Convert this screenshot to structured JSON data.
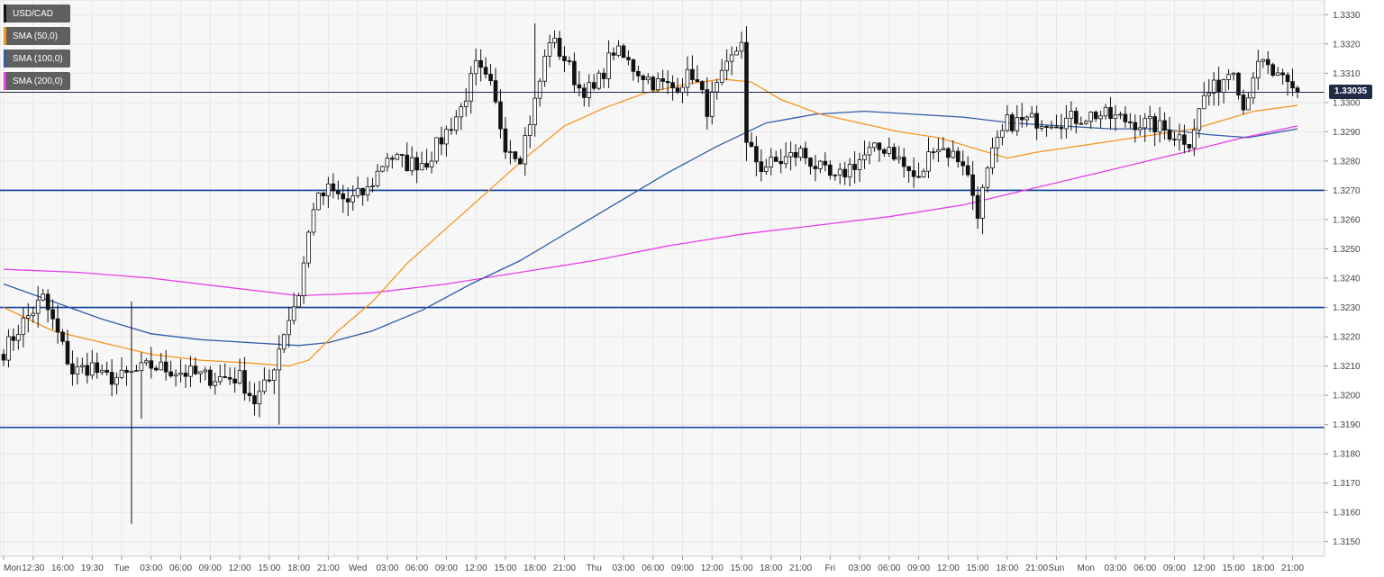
{
  "chart_data": {
    "type": "candlestick",
    "symbol": "USD/CAD",
    "legend": [
      {
        "label": "USD/CAD",
        "color": "#111111"
      },
      {
        "label": "SMA (50,0)",
        "color": "#f7941d"
      },
      {
        "label": "SMA (100,0)",
        "color": "#2e5aa8"
      },
      {
        "label": "SMA (200,0)",
        "color": "#e83ee8"
      }
    ],
    "y_axis": {
      "min": 1.3145,
      "max": 1.3335,
      "ticks": [
        "1.3150",
        "1.3160",
        "1.3170",
        "1.3180",
        "1.3190",
        "1.3200",
        "1.3210",
        "1.3220",
        "1.3230",
        "1.3240",
        "1.3250",
        "1.3260",
        "1.3270",
        "1.3280",
        "1.3290",
        "1.3300",
        "1.3310",
        "1.3320",
        "1.3330"
      ]
    },
    "x_axis": {
      "ticks": [
        {
          "i": 0,
          "label": "Mon"
        },
        {
          "i": 6,
          "label": "12:30"
        },
        {
          "i": 12,
          "label": "16:00"
        },
        {
          "i": 18,
          "label": "19:30"
        },
        {
          "i": 24,
          "label": "Tue"
        },
        {
          "i": 30,
          "label": "03:00"
        },
        {
          "i": 36,
          "label": "06:00"
        },
        {
          "i": 42,
          "label": "09:00"
        },
        {
          "i": 48,
          "label": "12:00"
        },
        {
          "i": 54,
          "label": "15:00"
        },
        {
          "i": 60,
          "label": "18:00"
        },
        {
          "i": 66,
          "label": "21:00"
        },
        {
          "i": 72,
          "label": "Wed"
        },
        {
          "i": 78,
          "label": "03:00"
        },
        {
          "i": 84,
          "label": "06:00"
        },
        {
          "i": 90,
          "label": "09:00"
        },
        {
          "i": 96,
          "label": "12:00"
        },
        {
          "i": 102,
          "label": "15:00"
        },
        {
          "i": 108,
          "label": "18:00"
        },
        {
          "i": 114,
          "label": "21:00"
        },
        {
          "i": 120,
          "label": "Thu"
        },
        {
          "i": 126,
          "label": "03:00"
        },
        {
          "i": 132,
          "label": "06:00"
        },
        {
          "i": 138,
          "label": "09:00"
        },
        {
          "i": 144,
          "label": "12:00"
        },
        {
          "i": 150,
          "label": "15:00"
        },
        {
          "i": 156,
          "label": "18:00"
        },
        {
          "i": 162,
          "label": "21:00"
        },
        {
          "i": 168,
          "label": "Fri"
        },
        {
          "i": 174,
          "label": "03:00"
        },
        {
          "i": 180,
          "label": "06:00"
        },
        {
          "i": 186,
          "label": "09:00"
        },
        {
          "i": 192,
          "label": "12:00"
        },
        {
          "i": 198,
          "label": "15:00"
        },
        {
          "i": 204,
          "label": "18:00"
        },
        {
          "i": 210,
          "label": "21:00"
        },
        {
          "i": 214,
          "label": "Sun"
        },
        {
          "i": 220,
          "label": "Mon"
        },
        {
          "i": 226,
          "label": "03:00"
        },
        {
          "i": 232,
          "label": "06:00"
        },
        {
          "i": 238,
          "label": "09:00"
        },
        {
          "i": 244,
          "label": "12:00"
        },
        {
          "i": 250,
          "label": "15:00"
        },
        {
          "i": 256,
          "label": "18:00"
        },
        {
          "i": 262,
          "label": "21:00"
        }
      ]
    },
    "horizontal_levels": [
      1.327,
      1.323,
      1.3189
    ],
    "current_price": {
      "value": 1.33035,
      "label": "1.33035"
    },
    "candle_count": 264,
    "keypoints": [
      [
        0,
        1.3215
      ],
      [
        4,
        1.3225
      ],
      [
        8,
        1.3233
      ],
      [
        10,
        1.3225
      ],
      [
        14,
        1.3208
      ],
      [
        18,
        1.321
      ],
      [
        20,
        1.3206
      ],
      [
        24,
        1.3206
      ],
      [
        30,
        1.321
      ],
      [
        36,
        1.3208
      ],
      [
        42,
        1.3206
      ],
      [
        48,
        1.3206
      ],
      [
        51,
        1.3198
      ],
      [
        54,
        1.3205
      ],
      [
        57,
        1.3222
      ],
      [
        60,
        1.3235
      ],
      [
        63,
        1.3265
      ],
      [
        66,
        1.327
      ],
      [
        70,
        1.3266
      ],
      [
        74,
        1.327
      ],
      [
        78,
        1.3282
      ],
      [
        82,
        1.3279
      ],
      [
        86,
        1.328
      ],
      [
        90,
        1.329
      ],
      [
        93,
        1.3298
      ],
      [
        96,
        1.3312
      ],
      [
        99,
        1.3305
      ],
      [
        102,
        1.3286
      ],
      [
        105,
        1.3282
      ],
      [
        108,
        1.33
      ],
      [
        111,
        1.3322
      ],
      [
        114,
        1.3315
      ],
      [
        117,
        1.3305
      ],
      [
        120,
        1.3304
      ],
      [
        124,
        1.3318
      ],
      [
        128,
        1.3312
      ],
      [
        132,
        1.3307
      ],
      [
        136,
        1.3305
      ],
      [
        140,
        1.331
      ],
      [
        143,
        1.3298
      ],
      [
        146,
        1.3308
      ],
      [
        149,
        1.3318
      ],
      [
        150,
        1.3322
      ],
      [
        151,
        1.3285
      ],
      [
        154,
        1.3278
      ],
      [
        158,
        1.328
      ],
      [
        162,
        1.3283
      ],
      [
        166,
        1.3277
      ],
      [
        169,
        1.3273
      ],
      [
        172,
        1.3278
      ],
      [
        176,
        1.3283
      ],
      [
        180,
        1.3285
      ],
      [
        183,
        1.3278
      ],
      [
        186,
        1.3273
      ],
      [
        189,
        1.3286
      ],
      [
        192,
        1.3283
      ],
      [
        195,
        1.328
      ],
      [
        198,
        1.3263
      ],
      [
        201,
        1.3282
      ],
      [
        204,
        1.3293
      ],
      [
        210,
        1.3294
      ],
      [
        216,
        1.3294
      ],
      [
        222,
        1.3296
      ],
      [
        228,
        1.3294
      ],
      [
        234,
        1.3292
      ],
      [
        238,
        1.3289
      ],
      [
        241,
        1.3287
      ],
      [
        244,
        1.3302
      ],
      [
        247,
        1.3306
      ],
      [
        250,
        1.3313
      ],
      [
        252,
        1.3298
      ],
      [
        254,
        1.331
      ],
      [
        256,
        1.3313
      ],
      [
        259,
        1.3308
      ],
      [
        262,
        1.3304
      ],
      [
        263,
        1.33035
      ]
    ],
    "wicks": [
      {
        "i": 26,
        "low": 1.3156,
        "high": 1.3232
      },
      {
        "i": 28,
        "low": 1.3192,
        "high": 1.3212
      },
      {
        "i": 56,
        "low": 1.319,
        "high": 1.3218
      },
      {
        "i": 108,
        "low": 1.3296,
        "high": 1.3327
      },
      {
        "i": 151,
        "low": 1.328,
        "high": 1.3326
      },
      {
        "i": 199,
        "low": 1.3255,
        "high": 1.3272
      }
    ],
    "sma_50": [
      [
        0,
        1.323
      ],
      [
        10,
        1.3222
      ],
      [
        20,
        1.3218
      ],
      [
        30,
        1.3214
      ],
      [
        40,
        1.3212
      ],
      [
        50,
        1.3211
      ],
      [
        58,
        1.321
      ],
      [
        62,
        1.3212
      ],
      [
        68,
        1.3222
      ],
      [
        75,
        1.3232
      ],
      [
        82,
        1.3245
      ],
      [
        90,
        1.3257
      ],
      [
        98,
        1.3269
      ],
      [
        106,
        1.3281
      ],
      [
        114,
        1.3292
      ],
      [
        122,
        1.3298
      ],
      [
        130,
        1.3303
      ],
      [
        138,
        1.3306
      ],
      [
        146,
        1.3308
      ],
      [
        152,
        1.3307
      ],
      [
        158,
        1.3301
      ],
      [
        166,
        1.3296
      ],
      [
        174,
        1.3293
      ],
      [
        182,
        1.329
      ],
      [
        190,
        1.3288
      ],
      [
        198,
        1.3284
      ],
      [
        204,
        1.3281
      ],
      [
        210,
        1.3283
      ],
      [
        218,
        1.3285
      ],
      [
        226,
        1.3287
      ],
      [
        234,
        1.3289
      ],
      [
        242,
        1.3291
      ],
      [
        248,
        1.3294
      ],
      [
        254,
        1.3297
      ],
      [
        263,
        1.3299
      ]
    ],
    "sma_100": [
      [
        0,
        1.3238
      ],
      [
        10,
        1.3232
      ],
      [
        20,
        1.3226
      ],
      [
        30,
        1.3221
      ],
      [
        40,
        1.3219
      ],
      [
        50,
        1.3218
      ],
      [
        60,
        1.3217
      ],
      [
        66,
        1.3218
      ],
      [
        75,
        1.3222
      ],
      [
        85,
        1.3229
      ],
      [
        95,
        1.3238
      ],
      [
        105,
        1.3246
      ],
      [
        115,
        1.3256
      ],
      [
        125,
        1.3266
      ],
      [
        135,
        1.3276
      ],
      [
        145,
        1.3285
      ],
      [
        155,
        1.3293
      ],
      [
        165,
        1.3296
      ],
      [
        175,
        1.3297
      ],
      [
        185,
        1.3296
      ],
      [
        195,
        1.3295
      ],
      [
        205,
        1.3293
      ],
      [
        215,
        1.3292
      ],
      [
        225,
        1.3291
      ],
      [
        235,
        1.3291
      ],
      [
        245,
        1.3289
      ],
      [
        253,
        1.3288
      ],
      [
        263,
        1.3291
      ]
    ],
    "sma_200": [
      [
        0,
        1.3243
      ],
      [
        15,
        1.3242
      ],
      [
        30,
        1.324
      ],
      [
        45,
        1.3237
      ],
      [
        60,
        1.3234
      ],
      [
        75,
        1.3235
      ],
      [
        90,
        1.3238
      ],
      [
        105,
        1.3242
      ],
      [
        120,
        1.3246
      ],
      [
        135,
        1.3251
      ],
      [
        150,
        1.3255
      ],
      [
        165,
        1.3258
      ],
      [
        180,
        1.3261
      ],
      [
        195,
        1.3265
      ],
      [
        210,
        1.3271
      ],
      [
        225,
        1.3277
      ],
      [
        240,
        1.3283
      ],
      [
        252,
        1.3288
      ],
      [
        263,
        1.3292
      ]
    ]
  }
}
